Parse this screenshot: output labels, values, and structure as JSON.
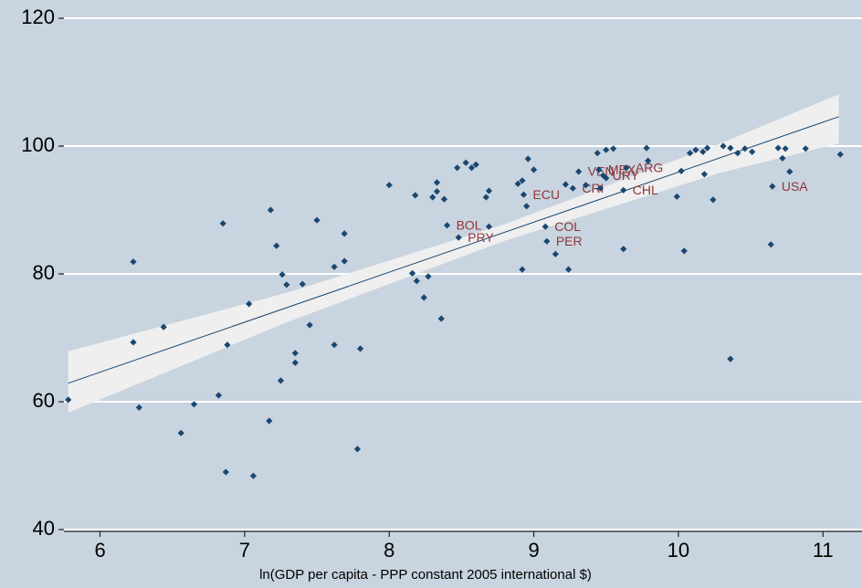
{
  "chart_data": {
    "type": "scatter",
    "x_label": "ln(GDP per capita - PPP constant 2005 international $)",
    "xlim": [
      5.75,
      11.27
    ],
    "xticks": [
      6,
      7,
      8,
      9,
      10,
      11
    ],
    "ylim": [
      40,
      120
    ],
    "yticks": [
      40,
      60,
      80,
      100,
      120
    ],
    "grid": true,
    "background": "#c8d4df",
    "color": "#1a476f",
    "label_color": "#90353b",
    "series": [
      {
        "x": [
          5.78,
          6.23,
          6.23,
          6.27,
          6.44,
          6.56,
          6.65,
          6.82,
          6.85,
          6.87,
          6.88,
          7.03,
          7.06,
          7.17,
          7.18,
          7.22,
          7.25,
          7.26,
          7.29,
          7.35,
          7.35,
          7.4,
          7.45,
          7.5,
          7.62,
          7.62,
          7.69,
          7.69,
          7.78,
          7.8,
          8.0,
          8.16,
          8.18,
          8.19,
          8.24,
          8.36,
          8.27,
          8.3,
          8.33,
          8.33,
          8.38,
          8.4,
          8.47,
          8.48,
          8.53,
          8.57,
          8.6,
          8.67,
          8.69,
          8.69,
          8.89,
          8.92,
          8.92,
          8.93,
          8.95,
          8.96,
          9.0,
          9.08,
          9.09,
          9.15,
          9.22,
          9.24,
          9.27,
          9.31,
          9.36,
          9.44,
          9.45,
          9.46,
          9.48,
          9.5,
          9.5,
          9.55,
          9.62,
          9.62,
          9.64,
          9.78,
          9.79,
          9.99,
          10.02,
          10.04,
          10.08,
          10.12,
          10.17,
          10.18,
          10.2,
          10.24,
          10.31,
          10.36,
          10.36,
          10.41,
          10.46,
          10.51,
          10.64,
          10.65,
          10.69,
          10.72,
          10.74,
          10.77,
          10.88,
          11.12
        ],
        "values": [
          60.3,
          69.3,
          81.9,
          59.1,
          71.7,
          55.1,
          59.6,
          61.0,
          87.9,
          49.0,
          68.9,
          75.3,
          48.4,
          57.0,
          90.0,
          84.4,
          63.3,
          79.9,
          78.3,
          66.1,
          67.6,
          78.4,
          72.0,
          88.4,
          68.9,
          81.1,
          82.0,
          86.3,
          52.6,
          68.3,
          93.9,
          80.1,
          92.3,
          78.9,
          76.3,
          73.0,
          79.6,
          92.0,
          94.3,
          92.9,
          91.7,
          87.6,
          96.6,
          85.7,
          97.4,
          96.6,
          97.1,
          92.0,
          93.0,
          87.4,
          94.1,
          94.6,
          80.7,
          92.4,
          90.6,
          98.0,
          96.3,
          87.4,
          85.1,
          83.1,
          94.0,
          80.7,
          93.4,
          96.0,
          93.9,
          98.9,
          96.3,
          93.4,
          95.4,
          95.0,
          99.4,
          99.6,
          93.1,
          83.9,
          96.6,
          99.7,
          97.7,
          92.1,
          96.1,
          83.6,
          98.9,
          99.4,
          99.1,
          95.6,
          99.7,
          91.6,
          100.0,
          99.7,
          66.7,
          98.9,
          99.6,
          99.1,
          84.6,
          93.7,
          99.7,
          98.1,
          99.6,
          96.0,
          99.6,
          98.7
        ],
        "labels": [
          null,
          null,
          null,
          null,
          null,
          null,
          null,
          null,
          null,
          null,
          null,
          null,
          null,
          null,
          null,
          null,
          null,
          null,
          null,
          null,
          null,
          null,
          null,
          null,
          null,
          null,
          null,
          null,
          null,
          null,
          null,
          null,
          null,
          null,
          null,
          null,
          null,
          null,
          null,
          null,
          null,
          "BOL",
          null,
          "PRY",
          null,
          null,
          null,
          null,
          null,
          null,
          null,
          null,
          null,
          "ECU",
          null,
          null,
          null,
          "COL",
          "PER",
          null,
          null,
          null,
          "CRI",
          "VEN",
          null,
          null,
          "MEX",
          null,
          "URY",
          null,
          null,
          null,
          "CHL",
          null,
          "ARG",
          null,
          null,
          null,
          null,
          null,
          null,
          null,
          null,
          null,
          null,
          null,
          null,
          null,
          null,
          null,
          null,
          null,
          null,
          "USA",
          null,
          null,
          null,
          null,
          null,
          null
        ]
      }
    ],
    "fit": {
      "x": [
        5.78,
        11.11
      ],
      "values": [
        62.9,
        104.6
      ]
    },
    "band": {
      "x": [
        5.78,
        7.3,
        8.8,
        10.3,
        11.11
      ],
      "lower": [
        58.3,
        72.5,
        85.2,
        95.9,
        100.4
      ],
      "upper": [
        67.9,
        77.1,
        87.8,
        100.5,
        108.1
      ],
      "color": "#efefef"
    }
  }
}
